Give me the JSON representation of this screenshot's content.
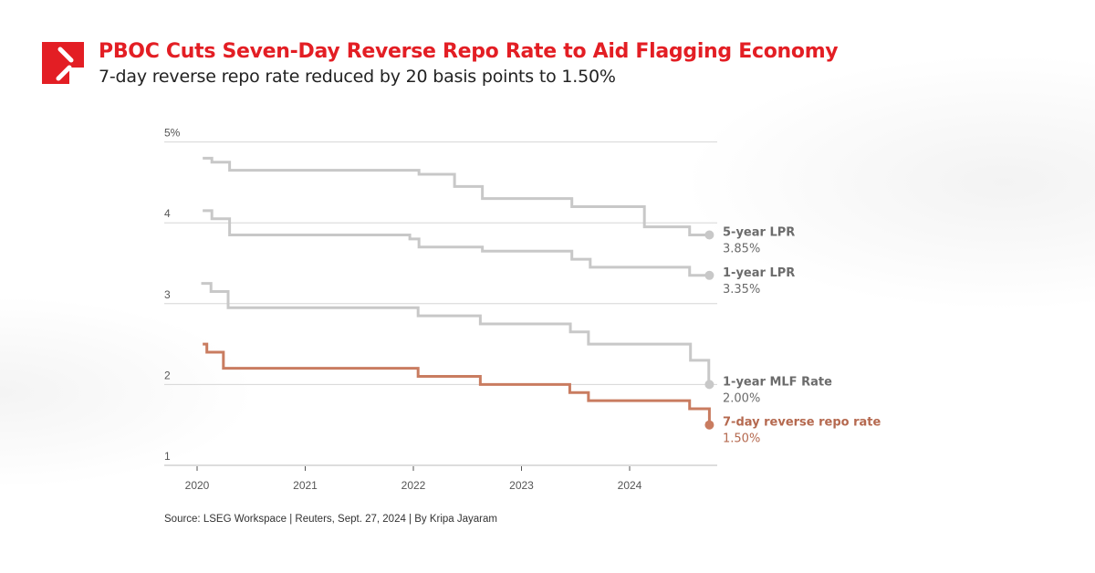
{
  "header": {
    "title": "PBOC Cuts Seven-Day Reverse Repo Rate to Aid Flagging Economy",
    "subtitle": "7-day reverse repo rate reduced by 20 basis points to 1.50%",
    "brand_color": "#e31e24"
  },
  "footer": {
    "source": "Source: LSEG Workspace | Reuters, Sept. 27, 2024 | By Kripa Jayaram"
  },
  "chart_data": {
    "type": "line",
    "step": true,
    "x_ticks": [
      "2020",
      "2021",
      "2022",
      "2023",
      "2024"
    ],
    "y_ticks": [
      "5%",
      "4",
      "3",
      "2",
      "1"
    ],
    "y_tick_values": [
      5,
      4,
      3,
      2,
      1
    ],
    "ylim": [
      1,
      5
    ],
    "xlim": [
      "2019-09-15",
      "2024-10-20"
    ],
    "grid": true,
    "legend": "end-labels-right",
    "series": [
      {
        "name": "5-year LPR",
        "end_label": "3.85%",
        "color": "#c8c8c8",
        "label_color": "#6b6b6b",
        "points": [
          [
            "2020-01-20",
            4.8
          ],
          [
            "2020-02-20",
            4.75
          ],
          [
            "2020-04-20",
            4.65
          ],
          [
            "2022-01-20",
            4.6
          ],
          [
            "2022-05-20",
            4.45
          ],
          [
            "2022-08-22",
            4.3
          ],
          [
            "2023-06-20",
            4.2
          ],
          [
            "2024-02-20",
            3.95
          ],
          [
            "2024-07-22",
            3.85
          ],
          [
            "2024-09-27",
            3.85
          ]
        ]
      },
      {
        "name": "1-year LPR",
        "end_label": "3.35%",
        "color": "#c8c8c8",
        "label_color": "#6b6b6b",
        "points": [
          [
            "2020-01-20",
            4.15
          ],
          [
            "2020-02-20",
            4.05
          ],
          [
            "2020-04-20",
            3.85
          ],
          [
            "2021-12-20",
            3.8
          ],
          [
            "2022-01-20",
            3.7
          ],
          [
            "2022-08-22",
            3.65
          ],
          [
            "2023-06-20",
            3.55
          ],
          [
            "2023-08-21",
            3.45
          ],
          [
            "2024-07-22",
            3.35
          ],
          [
            "2024-09-27",
            3.35
          ]
        ]
      },
      {
        "name": "1-year MLF Rate",
        "end_label": "2.00%",
        "color": "#c8c8c8",
        "label_color": "#6b6b6b",
        "points": [
          [
            "2020-01-15",
            3.25
          ],
          [
            "2020-02-17",
            3.15
          ],
          [
            "2020-04-15",
            2.95
          ],
          [
            "2022-01-17",
            2.85
          ],
          [
            "2022-08-15",
            2.75
          ],
          [
            "2023-06-15",
            2.65
          ],
          [
            "2023-08-15",
            2.5
          ],
          [
            "2024-07-25",
            2.3
          ],
          [
            "2024-09-25",
            2.0
          ],
          [
            "2024-09-27",
            2.0
          ]
        ]
      },
      {
        "name": "7-day reverse repo  rate",
        "end_label": "1.50%",
        "color": "#c97c60",
        "label_color": "#b5694f",
        "points": [
          [
            "2020-01-20",
            2.5
          ],
          [
            "2020-02-03",
            2.4
          ],
          [
            "2020-03-30",
            2.2
          ],
          [
            "2022-01-17",
            2.1
          ],
          [
            "2022-08-15",
            2.0
          ],
          [
            "2023-06-13",
            1.9
          ],
          [
            "2023-08-15",
            1.8
          ],
          [
            "2024-07-22",
            1.7
          ],
          [
            "2024-09-27",
            1.5
          ]
        ]
      }
    ]
  }
}
